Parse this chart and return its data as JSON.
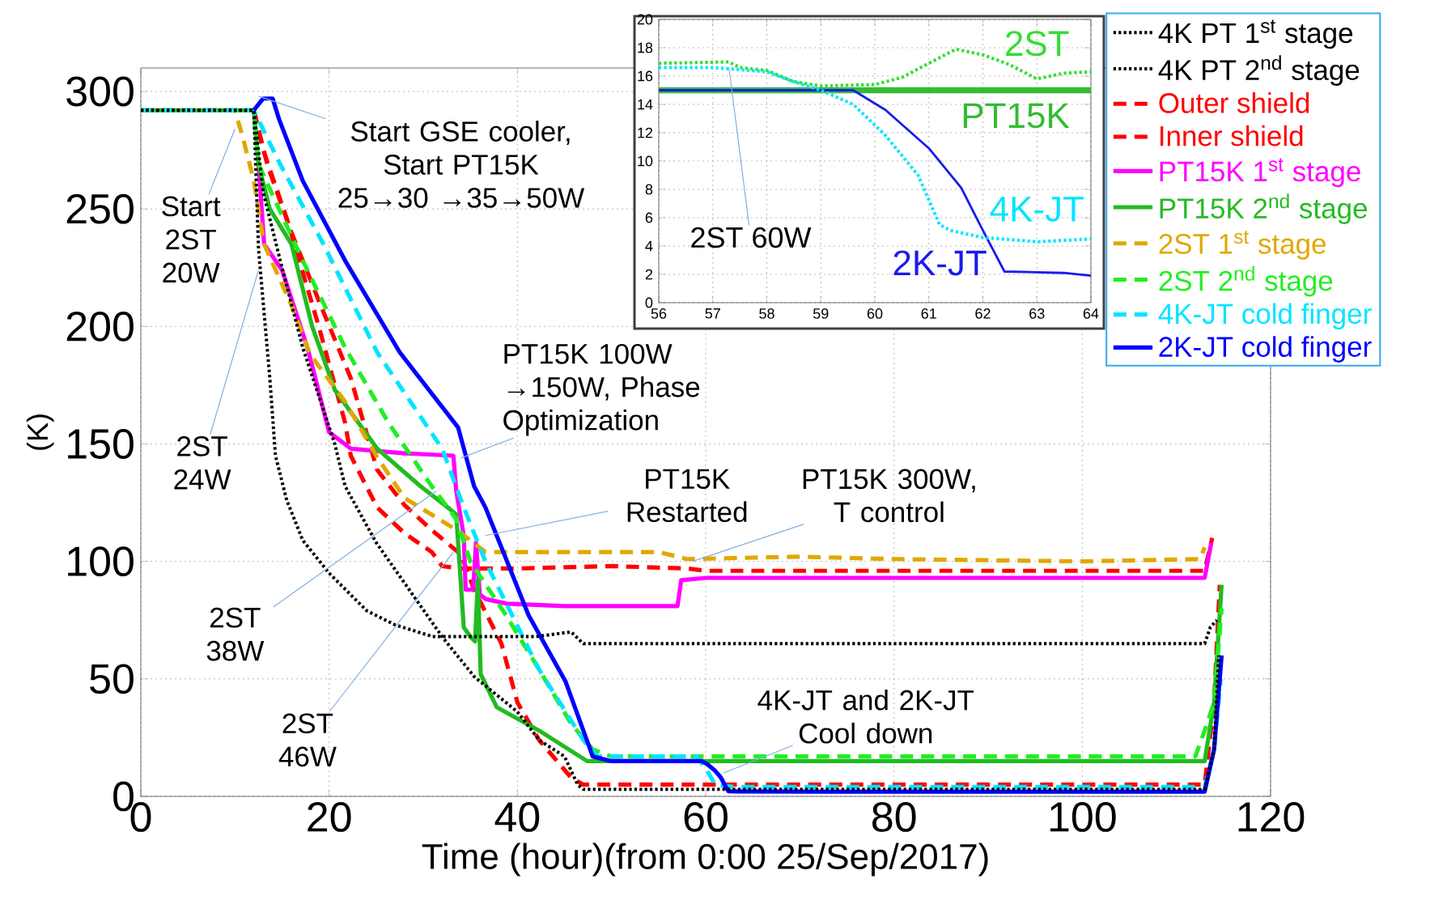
{
  "chart_data": [
    {
      "type": "line",
      "xlabel": "Time (hour)(from 0:00 25/Sep/2017)",
      "ylabel": "(K)",
      "xlim": [
        0,
        120
      ],
      "ylim": [
        0,
        310
      ],
      "xticks": [
        0,
        20,
        40,
        60,
        80,
        100,
        120
      ],
      "yticks": [
        0,
        50,
        100,
        150,
        200,
        250,
        300
      ],
      "grid": true,
      "legend": "top right",
      "series": [
        {
          "name": "4K PT 1$^{st}$ stage",
          "color": "#000000",
          "line_style": "dotted",
          "x": [
            0,
            12,
            12.5,
            13.7,
            14.3,
            15.5,
            17.2,
            20,
            24,
            27,
            31,
            36,
            42,
            45.7,
            47,
            60,
            80,
            100,
            113,
            113.6,
            114.3
          ],
          "values": [
            292,
            292,
            233,
            178,
            145,
            126,
            109,
            95,
            79,
            73,
            68,
            68,
            68,
            70,
            65,
            65,
            65,
            65,
            65,
            72,
            75
          ]
        },
        {
          "name": "4K PT 2$^{nd}$ stage",
          "color": "#000000",
          "line_style": "dotted",
          "x": [
            0,
            12,
            13,
            15,
            17.2,
            20.6,
            21.7,
            25,
            28.5,
            32,
            35.4,
            40,
            42.3,
            45,
            46.4,
            47,
            60,
            80,
            100,
            113,
            114,
            114.5
          ],
          "values": [
            292,
            292,
            257,
            225,
            191,
            150,
            132,
            108,
            88,
            68,
            51,
            36,
            24,
            17,
            5,
            3,
            3,
            3,
            3,
            3,
            20,
            60
          ]
        },
        {
          "name": "Outer shield",
          "color": "#ff0000",
          "line_style": "dashed",
          "x": [
            12,
            13,
            15.5,
            18.9,
            21.7,
            22.3,
            25.1,
            28,
            30.9,
            32,
            34,
            40,
            50,
            58,
            60,
            80,
            100,
            113,
            113.8
          ],
          "values": [
            292,
            275,
            246,
            200,
            159,
            145,
            123,
            112,
            104,
            98,
            97,
            97,
            98,
            97,
            96,
            96,
            96,
            96,
            110
          ]
        },
        {
          "name": "Inner shield",
          "color": "#ff0000",
          "line_style": "dashed",
          "x": [
            12,
            13.5,
            16,
            19,
            22.3,
            25.1,
            28,
            31,
            34,
            35.4,
            38.3,
            40,
            42.3,
            45.7,
            47,
            60,
            80,
            100,
            113,
            114,
            114.6
          ],
          "values": [
            292,
            268,
            240,
            210,
            178,
            139,
            124,
            113,
            103,
            88,
            65,
            40,
            24,
            8,
            5,
            5,
            5,
            5,
            5,
            40,
            90
          ]
        },
        {
          "name": "PT15K 1$^{st}$ stage",
          "color": "#ff00ff",
          "line_style": "solid",
          "x": [
            12.5,
            13.1,
            15,
            17.7,
            20,
            22.3,
            28,
            33.2,
            33.5,
            34.3,
            34.5,
            35.3,
            35.6,
            36,
            36.6,
            38.9,
            45,
            50,
            57,
            57.4,
            60,
            80,
            100,
            113,
            113.7
          ],
          "values": [
            269,
            235,
            224,
            191,
            155,
            148,
            146,
            145,
            130,
            111,
            88,
            88,
            108,
            86,
            84,
            82,
            81,
            81,
            81,
            92,
            93,
            93,
            93,
            93,
            108
          ]
        },
        {
          "name": "PT15K 2$^{nd}$ stage",
          "color": "#22bb22",
          "line_style": "solid",
          "x": [
            0,
            12,
            12.5,
            13.7,
            16,
            18.2,
            20.6,
            25.1,
            29.7,
            32.6,
            33.5,
            34.3,
            35,
            35.5,
            35.8,
            36.1,
            37.8,
            42.3,
            47.4,
            60,
            80,
            100,
            113,
            114,
            114.8
          ],
          "values": [
            292,
            292,
            269,
            250,
            235,
            200,
            173,
            148,
            132,
            123,
            120,
            72,
            68,
            66,
            92,
            52,
            38,
            28,
            15,
            15,
            15,
            15,
            15,
            40,
            90
          ]
        },
        {
          "name": "2ST 1$^{st}$ stage",
          "color": "#e0a800",
          "line_style": "dashed",
          "x": [
            0,
            10,
            10.8,
            12,
            13.1,
            16,
            18,
            21.7,
            25,
            28,
            33.7,
            36.6,
            45,
            55,
            58,
            70,
            80,
            100,
            112.5,
            113
          ],
          "values": [
            292,
            292,
            281,
            262,
            235,
            209,
            188,
            168,
            145,
            127,
            113,
            104,
            104,
            104,
            101,
            102,
            101,
            100,
            101,
            106
          ]
        },
        {
          "name": "2ST 2$^{nd}$ stage",
          "color": "#22ee22",
          "line_style": "dashed",
          "x": [
            0,
            12,
            12.5,
            17.2,
            21.7,
            26.3,
            30.9,
            33.5,
            35,
            38.8,
            42.3,
            45.7,
            48,
            50,
            60,
            80,
            100,
            112,
            113,
            114,
            114.8
          ],
          "values": [
            292,
            292,
            269,
            228,
            191,
            159,
            132,
            118,
            100,
            77,
            54,
            31,
            20,
            17,
            17,
            17,
            17,
            17,
            28,
            40,
            80
          ]
        },
        {
          "name": "4K-JT cold finger",
          "color": "#00e5ff",
          "line_style": "dashed",
          "x": [
            0,
            12,
            14.8,
            19.4,
            25.1,
            32,
            34.3,
            36.6,
            42.3,
            47,
            48.5,
            59,
            60,
            61,
            63,
            80,
            100,
            113,
            114,
            114.7
          ],
          "values": [
            292,
            292,
            269,
            235,
            189,
            148,
            123,
            100,
            54,
            24,
            17,
            17,
            12,
            5,
            4,
            4,
            4,
            4,
            20,
            50
          ]
        },
        {
          "name": "2K-JT cold finger",
          "color": "#0000ff",
          "line_style": "solid",
          "x": [
            12,
            13,
            14,
            14.7,
            17.2,
            21.7,
            27.5,
            33.7,
            35.4,
            36.6,
            41.2,
            45.1,
            48,
            50,
            59.6,
            60.2,
            61,
            61.6,
            62,
            62.4,
            63.5,
            80,
            100,
            113,
            114,
            114.8
          ],
          "values": [
            292,
            297,
            297,
            288,
            262,
            228,
            189,
            157,
            132,
            123,
            77,
            49,
            17,
            15,
            15,
            13.6,
            10.9,
            8.1,
            5.1,
            2.2,
            2.1,
            2,
            2,
            2,
            20,
            60
          ]
        }
      ],
      "annotations": [
        {
          "text": "Start GSE cooler, Start PT15K 25→30 →35→50W",
          "x": 12.5,
          "y": 298
        },
        {
          "text": "Start 2ST 20W",
          "x": 10,
          "y": 284
        },
        {
          "text": "2ST 24W",
          "x": 12.5,
          "y": 224
        },
        {
          "text": "PT15K 100W →150W, Phase Optimization",
          "x": 34,
          "y": 144
        },
        {
          "text": "PT15K Restarted",
          "x": 36.6,
          "y": 111
        },
        {
          "text": "PT15K 300W, T control",
          "x": 58.6,
          "y": 100
        },
        {
          "text": "2ST 38W",
          "x": 31.4,
          "y": 130
        },
        {
          "text": "2ST 46W",
          "x": 33.2,
          "y": 104
        },
        {
          "text": "4K-JT and 2K-JT Cool down",
          "x": 61.9,
          "y": 10
        }
      ]
    },
    {
      "type": "line",
      "xlim": [
        56,
        64
      ],
      "ylim": [
        0,
        20
      ],
      "xticks": [
        56,
        57,
        58,
        59,
        60,
        61,
        62,
        63,
        64
      ],
      "yticks": [
        0,
        2,
        4,
        6,
        8,
        10,
        12,
        14,
        16,
        18,
        20
      ],
      "grid": true,
      "series": [
        {
          "name": "2ST",
          "color": "#33dd33",
          "line_style": "dotted",
          "x": [
            56,
            57.3,
            57.5,
            58,
            58.5,
            59,
            60,
            60.5,
            61,
            61.5,
            62,
            62.5,
            63,
            63.5,
            64
          ],
          "values": [
            16.9,
            17,
            16.6,
            16.4,
            15.6,
            15.3,
            15.4,
            15.9,
            16.9,
            17.9,
            17.5,
            16.8,
            15.8,
            16.2,
            16.3
          ]
        },
        {
          "name": "PT15K",
          "color": "#33bb33",
          "line_style": "solid",
          "x": [
            56,
            57,
            58,
            59,
            60,
            61,
            62,
            63,
            64
          ],
          "values": [
            15,
            15,
            15,
            15,
            15,
            15,
            15,
            15,
            15
          ]
        },
        {
          "name": "4K-JT",
          "color": "#00e5ff",
          "line_style": "dotted",
          "x": [
            56,
            57,
            58,
            58.5,
            59,
            59.6,
            60.2,
            60.8,
            61.2,
            61.4,
            62,
            63,
            64
          ],
          "values": [
            16.6,
            16.6,
            16.3,
            15.6,
            15,
            14,
            11.8,
            9,
            5.5,
            5.1,
            4.6,
            4.3,
            4.5
          ]
        },
        {
          "name": "2K-JT",
          "color": "#1a1aee",
          "line_style": "solid",
          "x": [
            56,
            57,
            58,
            59,
            59.6,
            60.2,
            61,
            61.6,
            62,
            62.4,
            63.5,
            64
          ],
          "values": [
            15,
            15,
            15,
            15,
            15,
            13.6,
            10.9,
            8.1,
            5.1,
            2.2,
            2.1,
            1.9
          ]
        }
      ],
      "annotations": [
        {
          "text": "2ST 60W",
          "x": 57.3,
          "y": 16.6
        }
      ]
    }
  ]
}
